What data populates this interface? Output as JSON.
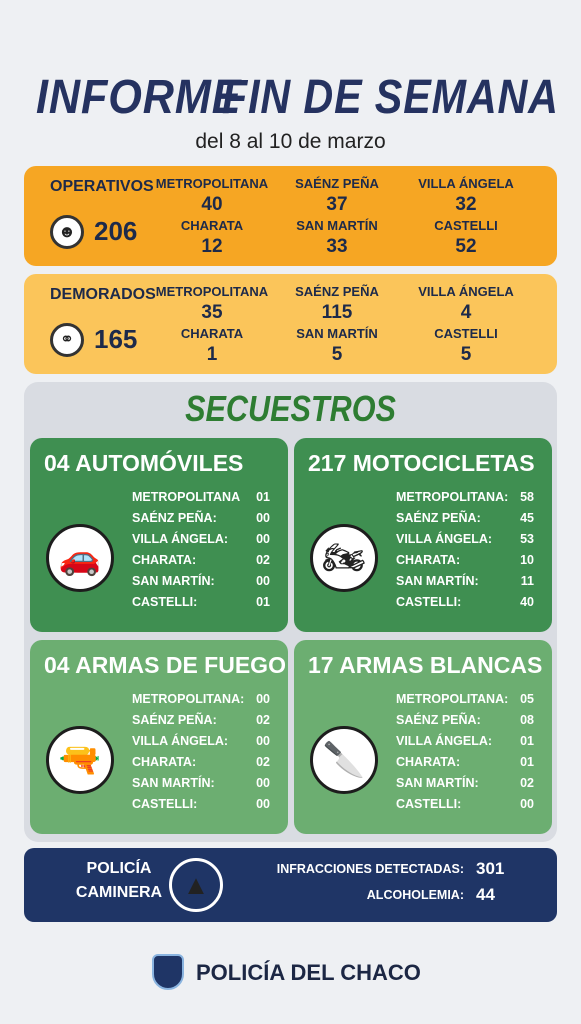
{
  "header": {
    "title_part1": "INFORME",
    "title_part2": "FIN DE SEMANA",
    "subtitle": "del 8 al 10 de marzo"
  },
  "summaries": [
    {
      "label": "OPERATIVOS",
      "total": "206",
      "regions": [
        {
          "name": "METROPOLITANA",
          "value": "40"
        },
        {
          "name": "SAÉNZ PEÑA",
          "value": "37"
        },
        {
          "name": "VILLA ÁNGELA",
          "value": "32"
        },
        {
          "name": "CHARATA",
          "value": "12"
        },
        {
          "name": "SAN MARTÍN",
          "value": "33"
        },
        {
          "name": "CASTELLI",
          "value": "52"
        }
      ]
    },
    {
      "label": "DEMORADOS",
      "total": "165",
      "regions": [
        {
          "name": "METROPOLITANA",
          "value": "35"
        },
        {
          "name": "SAÉNZ PEÑA",
          "value": "115"
        },
        {
          "name": "VILLA ÁNGELA",
          "value": "4"
        },
        {
          "name": "CHARATA",
          "value": "1"
        },
        {
          "name": "SAN MARTÍN",
          "value": "5"
        },
        {
          "name": "CASTELLI",
          "value": "5"
        }
      ]
    }
  ],
  "secuestros": {
    "title": "SECUESTROS",
    "cards": [
      {
        "title": "04 AUTOMÓVILES",
        "rows": [
          [
            "METROPOLITANA",
            "01"
          ],
          [
            "SAÉNZ PEÑA:",
            "00"
          ],
          [
            "VILLA ÁNGELA:",
            "00"
          ],
          [
            "CHARATA:",
            "02"
          ],
          [
            "SAN MARTÍN:",
            "00"
          ],
          [
            "CASTELLI:",
            "01"
          ]
        ]
      },
      {
        "title": "217 MOTOCICLETAS",
        "rows": [
          [
            "METROPOLITANA:",
            "58"
          ],
          [
            "SAÉNZ PEÑA:",
            "45"
          ],
          [
            "VILLA ÁNGELA:",
            "53"
          ],
          [
            "CHARATA:",
            "10"
          ],
          [
            "SAN MARTÍN:",
            "11"
          ],
          [
            "CASTELLI:",
            "40"
          ]
        ]
      },
      {
        "title": "04 ARMAS DE FUEGO",
        "rows": [
          [
            "METROPOLITANA:",
            "00"
          ],
          [
            "SAÉNZ PEÑA:",
            "02"
          ],
          [
            "VILLA ÁNGELA:",
            "00"
          ],
          [
            "CHARATA:",
            "02"
          ],
          [
            "SAN MARTÍN:",
            "00"
          ],
          [
            "CASTELLI:",
            "00"
          ]
        ]
      },
      {
        "title": "17 ARMAS BLANCAS",
        "rows": [
          [
            "METROPOLITANA:",
            "05"
          ],
          [
            "SAÉNZ PEÑA:",
            "08"
          ],
          [
            "VILLA ÁNGELA:",
            "01"
          ],
          [
            "CHARATA:",
            "01"
          ],
          [
            "SAN MARTÍN:",
            "02"
          ],
          [
            "CASTELLI:",
            "00"
          ]
        ]
      }
    ]
  },
  "caminera": {
    "label_line1": "POLICÍA",
    "label_line2": "CAMINERA",
    "items": [
      [
        "INFRACCIONES DETECTADAS:",
        "301"
      ],
      [
        "ALCOHOLEMIA:",
        "44"
      ]
    ]
  },
  "footer": {
    "brand": "POLICÍA DEL CHACO"
  }
}
